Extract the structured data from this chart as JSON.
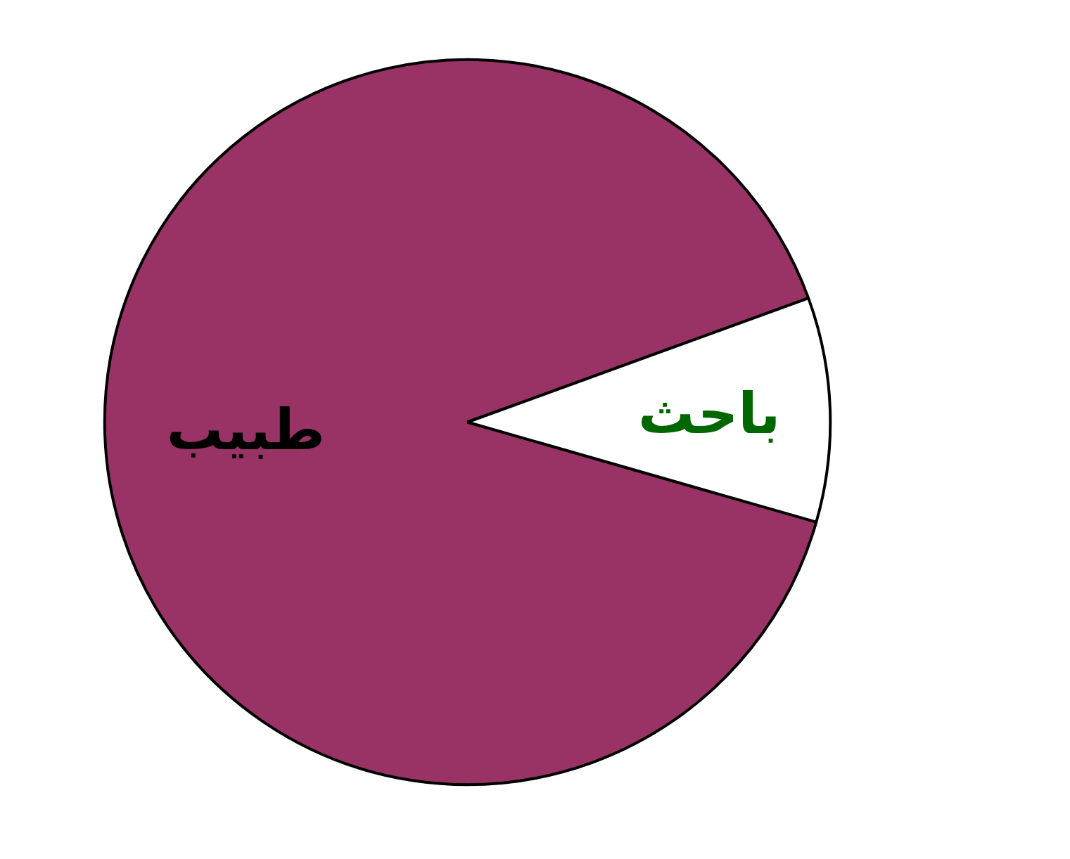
{
  "chart_data": {
    "type": "pie",
    "categories": [
      "طبيب",
      "باحث"
    ],
    "values": [
      90,
      10
    ],
    "colors": [
      "#993366",
      "#ffffff"
    ]
  }
}
